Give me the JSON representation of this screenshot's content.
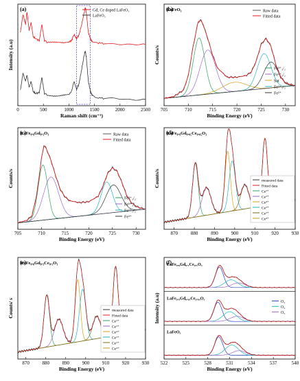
{
  "chart_data": [
    {
      "id": "a",
      "type": "line",
      "panel_label": "(a)",
      "xlabel": "Raman shift (cm⁻¹)",
      "ylabel": "Intensity (a.u)",
      "xlim": [
        0,
        2500
      ],
      "xticks": [
        "0",
        "500",
        "1000",
        "1500",
        "2000",
        "2500"
      ],
      "legend": [
        "Gd, Ce doped LaFeO₃",
        "LaFeO₃"
      ],
      "legend_position": "top-right",
      "highlight_box": [
        1150,
        1420
      ],
      "colors": [
        "#e41a1c",
        "#333333"
      ],
      "series": [
        {
          "name": "Gd, Ce doped LaFeO₃",
          "x": [
            50,
            100,
            150,
            180,
            220,
            260,
            300,
            350,
            420,
            470,
            520,
            600,
            700,
            800,
            900,
            1000,
            1050,
            1100,
            1150,
            1200,
            1250,
            1300,
            1320,
            1340,
            1380,
            1420,
            1460,
            1550,
            1700,
            1900,
            2100,
            2300,
            2500
          ],
          "y": [
            0.72,
            0.9,
            0.8,
            0.92,
            0.74,
            0.82,
            0.68,
            0.66,
            0.64,
            0.8,
            0.64,
            0.62,
            0.62,
            0.62,
            0.62,
            0.63,
            0.64,
            0.7,
            0.66,
            0.7,
            0.8,
            0.92,
            0.97,
            0.92,
            0.72,
            0.66,
            0.63,
            0.62,
            0.61,
            0.61,
            0.61,
            0.6,
            0.6
          ]
        },
        {
          "name": "LaFeO₃",
          "x": [
            50,
            100,
            150,
            180,
            220,
            260,
            300,
            350,
            420,
            470,
            520,
            600,
            700,
            800,
            900,
            1000,
            1050,
            1100,
            1150,
            1200,
            1250,
            1300,
            1320,
            1340,
            1380,
            1420,
            1460,
            1550,
            1700,
            1900,
            2100,
            2300,
            2500
          ],
          "y": [
            0.15,
            0.32,
            0.24,
            0.3,
            0.18,
            0.24,
            0.14,
            0.12,
            0.13,
            0.28,
            0.12,
            0.1,
            0.09,
            0.09,
            0.1,
            0.11,
            0.14,
            0.24,
            0.16,
            0.22,
            0.36,
            0.5,
            0.54,
            0.48,
            0.24,
            0.14,
            0.1,
            0.08,
            0.07,
            0.07,
            0.07,
            0.06,
            0.06
          ]
        }
      ]
    },
    {
      "id": "b",
      "type": "line",
      "panel_label": "(b)",
      "title": "LaFeO₃",
      "xlabel": "Binding Energy (eV)",
      "ylabel": "Counts/s",
      "xlim": [
        705,
        732
      ],
      "xticks": [
        "705",
        "710",
        "715",
        "720",
        "725",
        "730"
      ],
      "legend_top": [
        "Raw data",
        "Fitted data"
      ],
      "legend_bottom": [
        "Fe³⁺₃/₂",
        "Fe²⁺₃/₂",
        "Sat",
        "Fe³⁺₅/₂",
        "Fe²⁺"
      ],
      "colors": [
        "#555555",
        "#e41a1c",
        "#2ca25f",
        "#9e66c9",
        "#d4a017",
        "#1fb5c2",
        "#333333"
      ],
      "raw": {
        "x": [
          705,
          707,
          709,
          710,
          711,
          712,
          712.5,
          713,
          714,
          715,
          716,
          718,
          720,
          722,
          723,
          724,
          725,
          726,
          727,
          728,
          729,
          730,
          731,
          732
        ],
        "y": [
          0.05,
          0.07,
          0.14,
          0.3,
          0.62,
          0.88,
          0.9,
          0.86,
          0.7,
          0.52,
          0.38,
          0.28,
          0.28,
          0.3,
          0.34,
          0.46,
          0.64,
          0.7,
          0.62,
          0.42,
          0.28,
          0.22,
          0.2,
          0.19
        ]
      },
      "peaks": [
        {
          "name": "Fe³⁺₃/₂",
          "center": 712.2,
          "height": 0.62,
          "width": 1.2
        },
        {
          "name": "Fe²⁺₃/₂",
          "center": 714.0,
          "height": 0.48,
          "width": 1.6
        },
        {
          "name": "Sat",
          "center": 719.5,
          "height": 0.1,
          "width": 2.5
        },
        {
          "name": "Fe³⁺₅/₂",
          "center": 725.6,
          "height": 0.38,
          "width": 1.4
        },
        {
          "name": "Fe²⁺",
          "center": 727.0,
          "height": 0.28,
          "width": 1.5
        }
      ],
      "baseline": {
        "start": 0.05,
        "end": 0.19
      }
    },
    {
      "id": "c",
      "type": "line",
      "panel_label": "(c)",
      "title": "LaFe₀.₉Gd₀.₁O₃",
      "xlabel": "Binding Energy (eV)",
      "ylabel": "Counts/s",
      "xlim": [
        705,
        732
      ],
      "xticks": [
        "705",
        "710",
        "715",
        "720",
        "725",
        "730"
      ],
      "legend_top": [
        "Raw data",
        "Fitted data"
      ],
      "legend_bottom": [
        "Fe²⁺₃/₂",
        "Fe³⁺₃/₂",
        "Fe²⁺₅/₂",
        "Fe³⁺"
      ],
      "colors": [
        "#555555",
        "#e41a1c",
        "#2ca25f",
        "#9e66c9",
        "#1fb5c2",
        "#333333"
      ],
      "raw": {
        "x": [
          705,
          707,
          708,
          709,
          710,
          710.5,
          711,
          712,
          713,
          714,
          715,
          716,
          718,
          720,
          722,
          723,
          724,
          725,
          726,
          727,
          728,
          729,
          730,
          731,
          732
        ],
        "y": [
          0.04,
          0.07,
          0.12,
          0.35,
          0.74,
          0.88,
          0.85,
          0.72,
          0.55,
          0.4,
          0.32,
          0.28,
          0.26,
          0.27,
          0.33,
          0.44,
          0.58,
          0.64,
          0.6,
          0.48,
          0.34,
          0.26,
          0.22,
          0.2,
          0.19
        ]
      },
      "peaks": [
        {
          "name": "Fe²⁺₃/₂",
          "center": 710.3,
          "height": 0.6,
          "width": 1.0
        },
        {
          "name": "Fe³⁺₃/₂",
          "center": 712.0,
          "height": 0.46,
          "width": 1.6
        },
        {
          "name": "Fe²⁺₅/₂",
          "center": 723.8,
          "height": 0.34,
          "width": 1.2
        },
        {
          "name": "Fe³⁺",
          "center": 725.2,
          "height": 0.3,
          "width": 1.6
        }
      ],
      "baseline": {
        "start": 0.04,
        "end": 0.19
      }
    },
    {
      "id": "d",
      "type": "line",
      "panel_label": "(d)",
      "title": "LaFe₀.₉Gd₀.₀₅Ce₀.₀₅O₃",
      "xlabel": "Binding Energy (eV)",
      "ylabel": "Counts/s",
      "xlim": [
        865,
        930
      ],
      "xticks": [
        "870",
        "880",
        "890",
        "900",
        "910",
        "920",
        "930"
      ],
      "legend": [
        "measured data",
        "Fitted data",
        "Ce³⁺",
        "Ce³⁺",
        "Ce⁴⁺",
        "Ce³⁺",
        "Ce³⁺",
        "Ce⁴⁺"
      ],
      "colors": [
        "#333333",
        "#e41a1c",
        "#2ca25f",
        "#9e66c9",
        "#d4a017",
        "#1fb5c2",
        "#7d6b1a",
        "#c79a1e"
      ],
      "peaks": [
        {
          "center": 880.5,
          "height": 0.62,
          "width": 1.4
        },
        {
          "center": 886.0,
          "height": 0.32,
          "width": 2.2
        },
        {
          "center": 896.5,
          "height": 0.7,
          "width": 1.3
        },
        {
          "center": 898.8,
          "height": 0.58,
          "width": 1.6
        },
        {
          "center": 905.0,
          "height": 0.28,
          "width": 2.0
        },
        {
          "center": 915.0,
          "height": 0.78,
          "width": 1.3
        }
      ],
      "baseline": {
        "start": 0.05,
        "end": 0.3
      }
    },
    {
      "id": "e",
      "type": "line",
      "panel_label": "(e)",
      "title": "LaFe₀.₈Gd₀.₁Ce₀.₁O₃",
      "xlabel": "Binding Energy (eV)",
      "ylabel": "Counts/ s",
      "xlim": [
        866,
        930
      ],
      "xticks": [
        "870",
        "880",
        "890",
        "900",
        "910",
        "920",
        "930"
      ],
      "legend": [
        "measured data",
        "Fitted data",
        "Ce³⁺",
        "Ce³⁺",
        "Ce⁴⁺",
        "Ce³⁺",
        "Ce³⁺",
        "Ce⁴⁺"
      ],
      "colors": [
        "#333333",
        "#e41a1c",
        "#2ca25f",
        "#9e66c9",
        "#d4a017",
        "#1fb5c2",
        "#7d6b1a",
        "#c79a1e"
      ],
      "peaks": [
        {
          "center": 880.5,
          "height": 0.6,
          "width": 1.4
        },
        {
          "center": 886.5,
          "height": 0.3,
          "width": 2.2
        },
        {
          "center": 896.0,
          "height": 0.72,
          "width": 1.3
        },
        {
          "center": 898.5,
          "height": 0.6,
          "width": 1.6
        },
        {
          "center": 905.5,
          "height": 0.26,
          "width": 2.0
        },
        {
          "center": 915.0,
          "height": 0.8,
          "width": 1.3
        }
      ],
      "baseline": {
        "start": 0.05,
        "end": 0.3
      }
    },
    {
      "id": "f",
      "type": "line",
      "panel_label": "(f)",
      "xlabel": "Binding Energy (eV)",
      "ylabel": "Intensity (a.u)",
      "xlim": [
        522,
        540
      ],
      "xticks": [
        "522",
        "525",
        "528",
        "531",
        "534",
        "537",
        "540"
      ],
      "legend": [
        "O₁",
        "O₂",
        "O₃"
      ],
      "colors": [
        "#333333",
        "#e41a1c",
        "#1f3fbf",
        "#1fb5c2",
        "#9e66c9"
      ],
      "subpanels": [
        {
          "label": "LaFe₀.₈Gd₀.₁Ce₀.₁O₃",
          "p1": [
            529.6,
            0.8,
            0.55
          ],
          "p2": [
            531.2,
            0.3,
            0.9
          ],
          "p3": [
            532.2,
            0.18,
            0.9
          ]
        },
        {
          "label": "LaFe₀.₉Gd₀.₀₅Ce₀.₀₅O₃",
          "p1": [
            529.4,
            0.75,
            0.55
          ],
          "p2": [
            531.0,
            0.38,
            0.9
          ],
          "p3": [
            532.0,
            0.2,
            0.9
          ]
        },
        {
          "label": "LaFeO₃",
          "p1": [
            529.5,
            0.72,
            0.55
          ],
          "p2": [
            531.3,
            0.4,
            0.9
          ],
          "p3": [
            532.3,
            0.18,
            0.9
          ]
        }
      ]
    }
  ]
}
